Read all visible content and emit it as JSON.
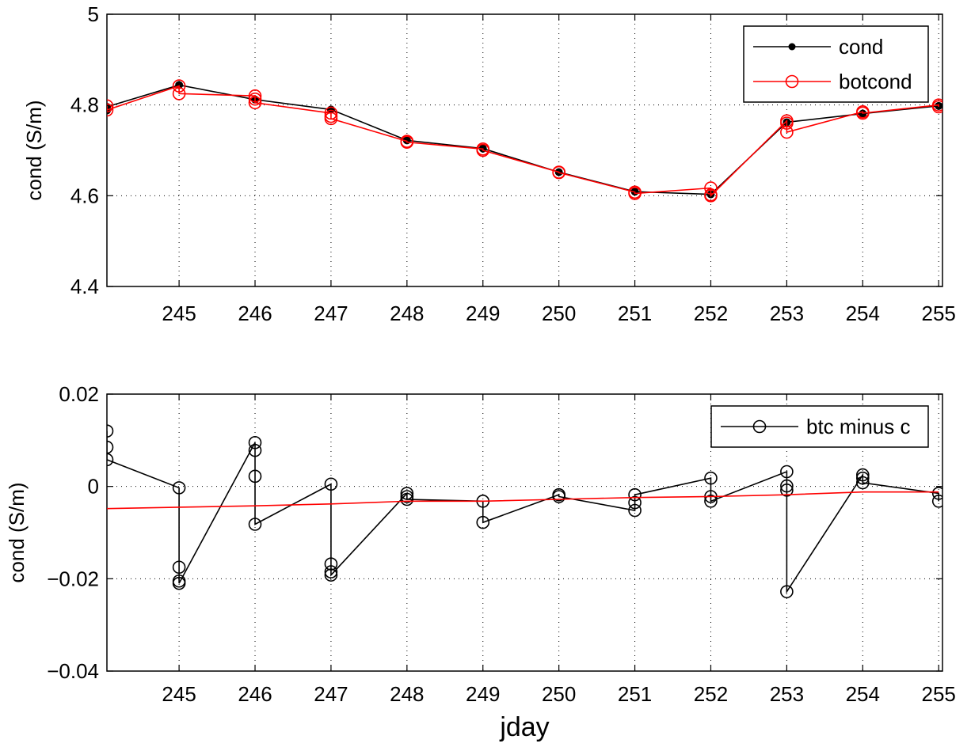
{
  "chart_data": [
    {
      "type": "line",
      "xlabel": "",
      "ylabel": "cond (S/m)",
      "xlim": [
        244.05,
        255.05
      ],
      "ylim": [
        4.4,
        5.0
      ],
      "xticks": [
        "245",
        "246",
        "247",
        "248",
        "249",
        "250",
        "251",
        "252",
        "253",
        "254",
        "255"
      ],
      "yticks": [
        "4.4",
        "4.6",
        "4.8",
        "5"
      ],
      "grid": true,
      "legend_position": "top-right",
      "series": [
        {
          "name": "cond",
          "color": "#000000",
          "marker": "filled-dot",
          "points": [
            [
              244.05,
              4.788
            ],
            [
              244.05,
              4.796
            ],
            [
              245.0,
              4.844
            ],
            [
              246.0,
              4.812
            ],
            [
              247.0,
              4.79
            ],
            [
              248.0,
              4.722
            ],
            [
              249.0,
              4.704
            ],
            [
              250.0,
              4.652
            ],
            [
              251.0,
              4.609
            ],
            [
              252.0,
              4.603
            ],
            [
              253.0,
              4.762
            ],
            [
              254.0,
              4.781
            ],
            [
              255.0,
              4.798
            ]
          ]
        },
        {
          "name": "botcond",
          "color": "#ff0000",
          "marker": "open-circle",
          "points": [
            [
              244.05,
              4.798
            ],
            [
              244.05,
              4.789
            ],
            [
              245.0,
              4.842
            ],
            [
              245.0,
              4.825
            ],
            [
              246.0,
              4.82
            ],
            [
              246.0,
              4.813
            ],
            [
              246.0,
              4.805
            ],
            [
              247.0,
              4.782
            ],
            [
              247.0,
              4.775
            ],
            [
              247.0,
              4.77
            ],
            [
              248.0,
              4.72
            ],
            [
              248.0,
              4.718
            ],
            [
              249.0,
              4.703
            ],
            [
              249.0,
              4.7
            ],
            [
              250.0,
              4.652
            ],
            [
              250.0,
              4.651
            ],
            [
              251.0,
              4.608
            ],
            [
              251.0,
              4.605
            ],
            [
              252.0,
              4.617
            ],
            [
              252.0,
              4.602
            ],
            [
              252.0,
              4.6
            ],
            [
              253.0,
              4.765
            ],
            [
              253.0,
              4.76
            ],
            [
              253.0,
              4.74
            ],
            [
              254.0,
              4.785
            ],
            [
              254.0,
              4.782
            ],
            [
              255.0,
              4.8
            ],
            [
              255.0,
              4.796
            ]
          ]
        }
      ]
    },
    {
      "type": "line",
      "xlabel": "jday",
      "ylabel": "cond (S/m)",
      "xlim": [
        244.05,
        255.05
      ],
      "ylim": [
        -0.04,
        0.02
      ],
      "xticks": [
        "245",
        "246",
        "247",
        "248",
        "249",
        "250",
        "251",
        "252",
        "253",
        "254",
        "255"
      ],
      "yticks": [
        "−0.04",
        "−0.02",
        "0",
        "0.02"
      ],
      "grid": true,
      "legend_position": "top-right",
      "series": [
        {
          "name": "btc minus c",
          "color": "#000000",
          "marker": "open-circle",
          "points": [
            [
              244.05,
              0.012
            ],
            [
              244.05,
              0.0085
            ],
            [
              244.05,
              0.0058
            ],
            [
              245.0,
              -0.0003
            ],
            [
              245.0,
              -0.0175
            ],
            [
              245.0,
              -0.0205
            ],
            [
              245.0,
              -0.021
            ],
            [
              246.0,
              0.0095
            ],
            [
              246.0,
              0.0078
            ],
            [
              246.0,
              0.0022
            ],
            [
              246.0,
              -0.0082
            ],
            [
              247.0,
              0.0005
            ],
            [
              247.0,
              -0.0168
            ],
            [
              247.0,
              -0.0185
            ],
            [
              247.0,
              -0.0192
            ],
            [
              248.0,
              -0.0015
            ],
            [
              248.0,
              -0.0022
            ],
            [
              248.0,
              -0.0028
            ],
            [
              249.0,
              -0.0032
            ],
            [
              249.0,
              -0.0078
            ],
            [
              250.0,
              -0.0018
            ],
            [
              250.0,
              -0.0022
            ],
            [
              251.0,
              -0.0052
            ],
            [
              251.0,
              -0.0035
            ],
            [
              251.0,
              -0.0018
            ],
            [
              252.0,
              0.0018
            ],
            [
              252.0,
              -0.0022
            ],
            [
              252.0,
              -0.0032
            ],
            [
              253.0,
              0.0032
            ],
            [
              253.0,
              0.0001
            ],
            [
              253.0,
              -0.0008
            ],
            [
              253.0,
              -0.0228
            ],
            [
              254.0,
              0.0025
            ],
            [
              254.0,
              0.0018
            ],
            [
              254.0,
              0.0008
            ],
            [
              255.0,
              -0.0015
            ],
            [
              255.0,
              -0.0032
            ]
          ]
        },
        {
          "name": "",
          "color": "#ff0000",
          "marker": "none",
          "points": [
            [
              244.05,
              -0.0048
            ],
            [
              245.0,
              -0.0045
            ],
            [
              246.0,
              -0.0042
            ],
            [
              247.0,
              -0.0038
            ],
            [
              248.0,
              -0.0032
            ],
            [
              249.0,
              -0.0032
            ],
            [
              250.0,
              -0.0028
            ],
            [
              251.0,
              -0.0024
            ],
            [
              252.0,
              -0.0022
            ],
            [
              253.0,
              -0.0018
            ],
            [
              254.0,
              -0.0012
            ],
            [
              255.0,
              -0.0012
            ]
          ]
        }
      ]
    }
  ]
}
